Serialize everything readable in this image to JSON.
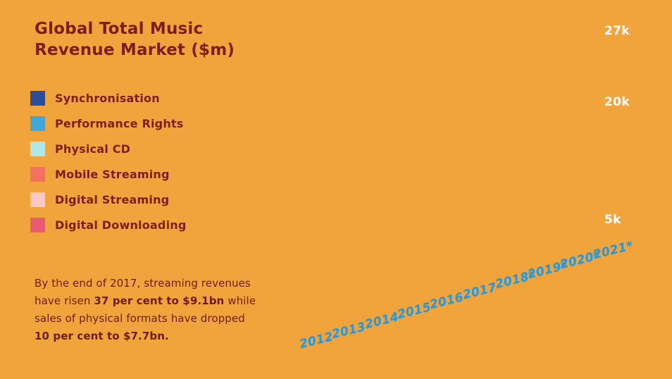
{
  "title": {
    "line1": "Global Total Music",
    "line2": "Revenue Market ($m)"
  },
  "colors": {
    "background": "#F2A43C",
    "title_text": "#7A1E1E",
    "year_label": "#1C9BE9",
    "axis_tick": "#FFFFFF"
  },
  "legend": {
    "items": [
      {
        "label": "Synchronisation",
        "color": "#2C4C9C"
      },
      {
        "label": "Performance Rights",
        "color": "#3FA8D9"
      },
      {
        "label": "Physical CD",
        "color": "#AEE8EA"
      },
      {
        "label": "Mobile Streaming",
        "color": "#F37163"
      },
      {
        "label": "Digital Streaming",
        "color": "#F9C9C5"
      },
      {
        "label": "Digital Downloading",
        "color": "#E85B72"
      }
    ]
  },
  "note": {
    "lines": [
      [
        {
          "text": "By the end of 2017, streaming revenues",
          "bold": false
        }
      ],
      [
        {
          "text": "have risen ",
          "bold": false
        },
        {
          "text": "37 per cent to $9.1bn",
          "bold": true
        },
        {
          "text": " while",
          "bold": false
        }
      ],
      [
        {
          "text": "sales of physical formats have dropped",
          "bold": false
        }
      ],
      [
        {
          "text": "10 per cent to $7.7bn.",
          "bold": true
        }
      ]
    ]
  },
  "chart_data": {
    "type": "bar",
    "title": "Global Total Music Revenue Market ($m)",
    "categories": [
      "2012",
      "2013",
      "2014",
      "2015",
      "2016",
      "2017",
      "2018*",
      "2019*",
      "2020*",
      "2021*"
    ],
    "series": [
      {
        "name": "Synchronisation"
      },
      {
        "name": "Performance Rights"
      },
      {
        "name": "Physical CD"
      },
      {
        "name": "Mobile Streaming"
      },
      {
        "name": "Digital Streaming"
      },
      {
        "name": "Digital Downloading"
      }
    ],
    "y_ticks": [
      "27k",
      "20k",
      "5k"
    ],
    "ylabel": "",
    "legend_position": "left",
    "grid": false,
    "bars_visible": false
  }
}
